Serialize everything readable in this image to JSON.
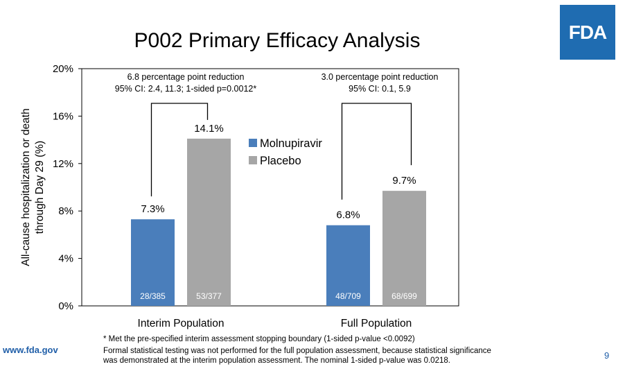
{
  "slide": {
    "title": "P002 Primary Efficacy Analysis",
    "logo_text": "FDA",
    "url": "www.fda.gov",
    "page_number": "9",
    "footnotes": [
      "* Met the pre-specified interim assessment stopping boundary (1-sided p-value <0.0092)",
      "Formal statistical testing was not performed for the full population assessment, because statistical significance",
      "was demonstrated at the interim population assessment. The nominal 1-sided p-value was 0.0218."
    ],
    "colors": {
      "logo_blue": "#1f6cb1",
      "url_blue": "#1f5ea8"
    }
  },
  "chart_data": {
    "type": "bar",
    "title": "P002 Primary Efficacy Analysis",
    "ylabel_lines": [
      "All-cause hospitalization or death",
      "through Day 29 (%)"
    ],
    "xlabel": "",
    "categories": [
      "Interim Population",
      "Full Population"
    ],
    "series": [
      {
        "name": "Molnupiravir",
        "color": "#4a7ebb",
        "values": [
          7.3,
          6.8
        ],
        "value_labels": [
          "7.3%",
          "6.8%"
        ],
        "count_labels": [
          "28/385",
          "48/709"
        ]
      },
      {
        "name": "Placebo",
        "color": "#a6a6a6",
        "values": [
          14.1,
          9.7
        ],
        "value_labels": [
          "14.1%",
          "9.7%"
        ],
        "count_labels": [
          "53/377",
          "68/699"
        ]
      }
    ],
    "ylim": [
      0,
      20
    ],
    "yticks": [
      0,
      4,
      8,
      12,
      16,
      20
    ],
    "ytick_labels": [
      "0%",
      "4%",
      "8%",
      "12%",
      "16%",
      "20%"
    ],
    "legend_position": "center",
    "grid": false,
    "annotations": [
      {
        "category": "Interim Population",
        "lines": [
          "6.8 percentage point reduction",
          "95% CI: 2.4, 11.3; 1-sided p=0.0012*"
        ]
      },
      {
        "category": "Full Population",
        "lines": [
          "3.0 percentage point reduction",
          "95% CI: 0.1, 5.9"
        ]
      }
    ]
  }
}
